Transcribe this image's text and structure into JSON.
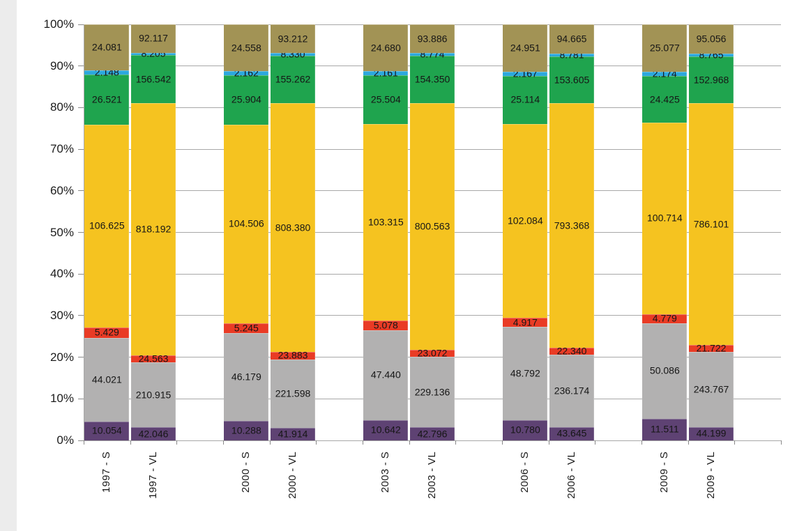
{
  "chart_data": {
    "type": "bar",
    "stacking": "percent",
    "title": "",
    "xlabel": "",
    "ylabel": "",
    "legend": "none",
    "grid": true,
    "value_label_decimals": 3,
    "categories": [
      "1997 - S",
      "1997 - VL",
      "2000 - S",
      "2000 - VL",
      "2003 - S",
      "2003 - VL",
      "2006 - S",
      "2006 - VL",
      "2009 - S",
      "2009 - VL"
    ],
    "series": [
      {
        "name": "purple-segment",
        "color": "#5E4273",
        "values": [
          10.054,
          42.046,
          10.288,
          41.914,
          10.642,
          42.796,
          10.78,
          43.645,
          11.511,
          44.199
        ]
      },
      {
        "name": "gray-segment",
        "color": "#B2B1B1",
        "values": [
          44.021,
          210.915,
          46.179,
          221.598,
          47.44,
          229.136,
          48.792,
          236.174,
          50.086,
          243.767
        ]
      },
      {
        "name": "red-segment",
        "color": "#E93B25",
        "values": [
          5.429,
          24.563,
          5.245,
          23.883,
          5.078,
          23.072,
          4.917,
          22.34,
          4.779,
          21.722
        ]
      },
      {
        "name": "yellow-segment",
        "color": "#F5C320",
        "values": [
          106.625,
          818.192,
          104.506,
          808.38,
          103.315,
          800.563,
          102.084,
          793.368,
          100.714,
          786.101
        ]
      },
      {
        "name": "green-segment",
        "color": "#1FA44E",
        "values": [
          26.521,
          156.542,
          25.904,
          155.262,
          25.504,
          154.35,
          25.114,
          153.605,
          24.425,
          152.968
        ]
      },
      {
        "name": "blue-segment",
        "color": "#2CA8DD",
        "values": [
          2.148,
          8.205,
          2.162,
          8.33,
          2.161,
          8.774,
          2.167,
          8.781,
          2.174,
          8.765
        ]
      },
      {
        "name": "olive-segment",
        "color": "#A29355",
        "values": [
          24.081,
          92.117,
          24.558,
          93.212,
          24.68,
          93.886,
          24.951,
          94.665,
          25.077,
          95.056
        ]
      }
    ],
    "y_axis": {
      "min": 0,
      "max": 100,
      "ticks": [
        "0%",
        "10%",
        "20%",
        "30%",
        "40%",
        "50%",
        "60%",
        "70%",
        "80%",
        "90%",
        "100%"
      ]
    },
    "x_axis": {
      "label_rotation": -90
    }
  },
  "colors": {
    "gridline": "#a8a8a8",
    "axis": "#8a8a8a",
    "text": "#1c1c1c",
    "page_edge": "#ececec",
    "background": "#ffffff"
  }
}
